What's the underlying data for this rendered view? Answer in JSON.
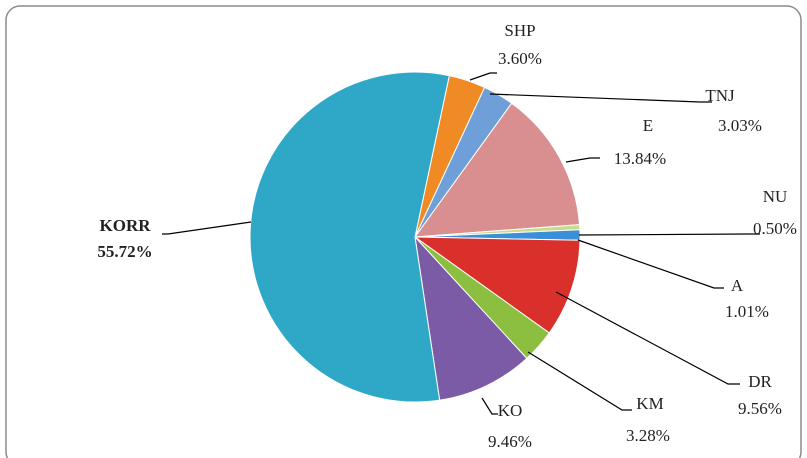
{
  "chart_data": {
    "type": "pie",
    "categories": [
      "SHP",
      "TNJ",
      "E",
      "NU",
      "A",
      "DR",
      "KM",
      "KO",
      "KORR"
    ],
    "values": [
      3.6,
      3.03,
      13.84,
      0.5,
      1.01,
      9.56,
      3.28,
      9.46,
      55.72
    ],
    "value_labels": [
      "3.60%",
      "3.03%",
      "13.84%",
      "0.50%",
      "1.01%",
      "9.56%",
      "3.28%",
      "9.46%",
      "55.72%"
    ],
    "colors": [
      "#f08a24",
      "#6f9fd8",
      "#d98f8f",
      "#c8dc8c",
      "#3b8fd9",
      "#d9302c",
      "#8cbf3f",
      "#7b5aa6",
      "#2fa8c8"
    ],
    "highlight": "KORR",
    "highlight_color": "#e02020"
  }
}
